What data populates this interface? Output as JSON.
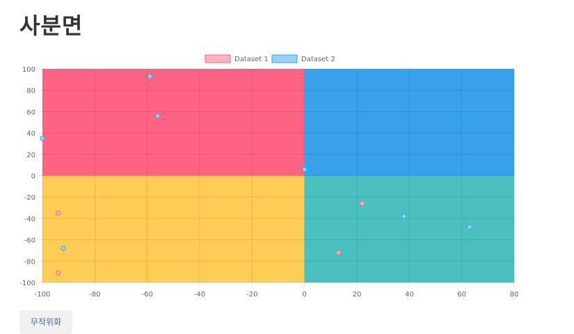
{
  "page": {
    "title": "사분면",
    "randomize_label": "무작위화"
  },
  "chart_data": {
    "type": "scatter",
    "title": "",
    "xlabel": "",
    "ylabel": "",
    "xlim": [
      -100,
      80
    ],
    "ylim": [
      -100,
      100
    ],
    "x_ticks": [
      -100,
      -80,
      -60,
      -40,
      -20,
      0,
      20,
      40,
      60,
      80
    ],
    "y_ticks": [
      100,
      80,
      60,
      40,
      20,
      0,
      -20,
      -40,
      -60,
      -80,
      -100
    ],
    "grid": true,
    "legend": "top-center",
    "quadrants": {
      "top_left": "#ff6384",
      "top_right": "#36a2eb",
      "bottom_left": "#ffcd56",
      "bottom_right": "#4bc0c0"
    },
    "series": [
      {
        "name": "Dataset 1",
        "fill": "#ffb1c1",
        "border": "#ff6384",
        "points": [
          {
            "x": -94,
            "y": -35
          },
          {
            "x": -94,
            "y": -91
          },
          {
            "x": 22,
            "y": -26
          },
          {
            "x": 13,
            "y": -72
          }
        ]
      },
      {
        "name": "Dataset 2",
        "fill": "#9ad0f5",
        "border": "#36a2eb",
        "points": [
          {
            "x": -59,
            "y": 93
          },
          {
            "x": -56,
            "y": 56
          },
          {
            "x": -100,
            "y": 35
          },
          {
            "x": -92,
            "y": -68
          },
          {
            "x": 38,
            "y": -38
          },
          {
            "x": 63,
            "y": -48
          },
          {
            "x": 0,
            "y": 6
          }
        ]
      }
    ]
  }
}
